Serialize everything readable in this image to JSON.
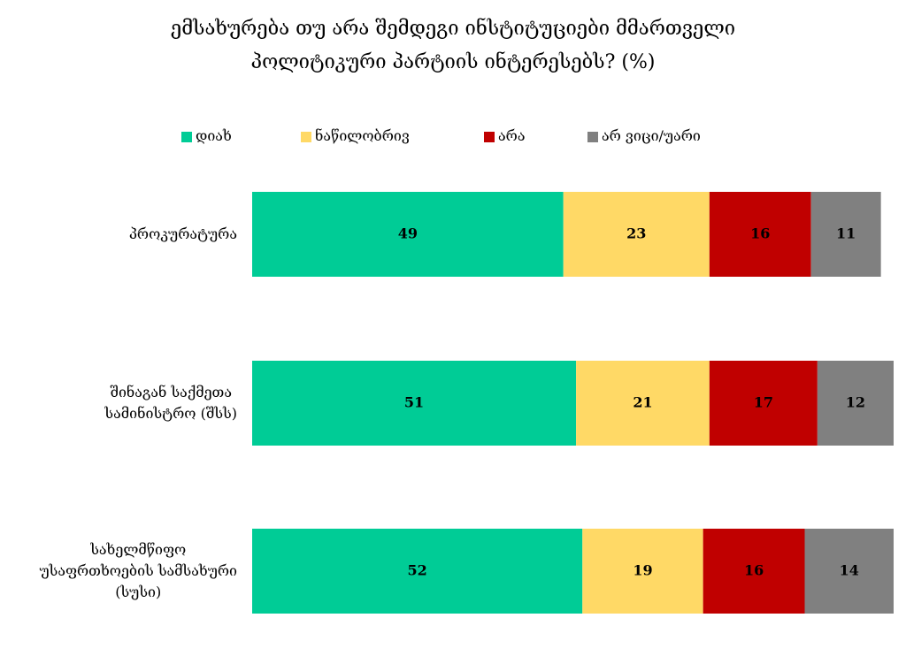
{
  "chart_data": {
    "type": "stacked-bar-horizontal",
    "title": "ემსახურება თუ არა შემდეგი ინსტიტუციები მმართველი\nპოლიტიკური პარტიის ინტერესებს? (%)",
    "categories": [
      "პროკურატურა",
      "შინაგან საქმეთა\nსამინისტრო (შსს)",
      "სახელმწიფო\nუსაფრთხოების სამსახური\n(სუსი)"
    ],
    "series": [
      {
        "name": "დიახ",
        "color": "#00cc96",
        "values": [
          49,
          51,
          52
        ]
      },
      {
        "name": "ნაწილობრივ",
        "color": "#ffd966",
        "values": [
          23,
          21,
          19
        ]
      },
      {
        "name": "არა",
        "color": "#c00000",
        "values": [
          16,
          17,
          16
        ]
      },
      {
        "name": "არ ვიცი/უარი",
        "color": "#808080",
        "values": [
          11,
          12,
          14
        ]
      }
    ],
    "legend": "top"
  }
}
